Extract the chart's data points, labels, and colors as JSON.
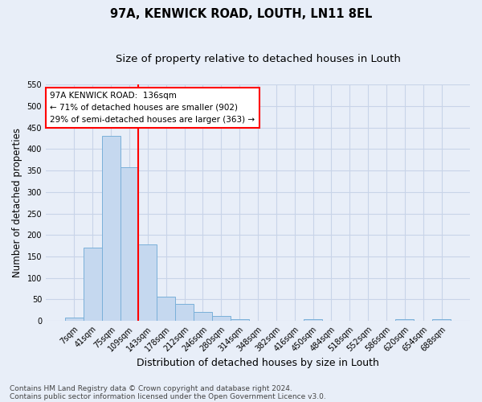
{
  "title": "97A, KENWICK ROAD, LOUTH, LN11 8EL",
  "subtitle": "Size of property relative to detached houses in Louth",
  "xlabel": "Distribution of detached houses by size in Louth",
  "ylabel": "Number of detached properties",
  "footnote1": "Contains HM Land Registry data © Crown copyright and database right 2024.",
  "footnote2": "Contains public sector information licensed under the Open Government Licence v3.0.",
  "bar_labels": [
    "7sqm",
    "41sqm",
    "75sqm",
    "109sqm",
    "143sqm",
    "178sqm",
    "212sqm",
    "246sqm",
    "280sqm",
    "314sqm",
    "348sqm",
    "382sqm",
    "416sqm",
    "450sqm",
    "484sqm",
    "518sqm",
    "552sqm",
    "586sqm",
    "620sqm",
    "654sqm",
    "688sqm"
  ],
  "bar_values": [
    8,
    170,
    430,
    357,
    178,
    57,
    40,
    20,
    12,
    4,
    0,
    0,
    0,
    3,
    0,
    0,
    0,
    0,
    3,
    0,
    4
  ],
  "bar_color": "#c5d8ef",
  "bar_edgecolor": "#7ab0d9",
  "vline_color": "red",
  "vline_x_idx": 4,
  "annotation_line1": "97A KENWICK ROAD:  136sqm",
  "annotation_line2": "← 71% of detached houses are smaller (902)",
  "annotation_line3": "29% of semi-detached houses are larger (363) →",
  "annotation_box_color": "red",
  "annotation_box_fill": "white",
  "ylim": [
    0,
    550
  ],
  "yticks": [
    0,
    50,
    100,
    150,
    200,
    250,
    300,
    350,
    400,
    450,
    500,
    550
  ],
  "grid_color": "#c8d4e8",
  "background_color": "#e8eef8",
  "title_fontsize": 10.5,
  "subtitle_fontsize": 9.5,
  "xlabel_fontsize": 9,
  "ylabel_fontsize": 8.5,
  "tick_fontsize": 7,
  "annotation_fontsize": 7.5,
  "footnote_fontsize": 6.5
}
